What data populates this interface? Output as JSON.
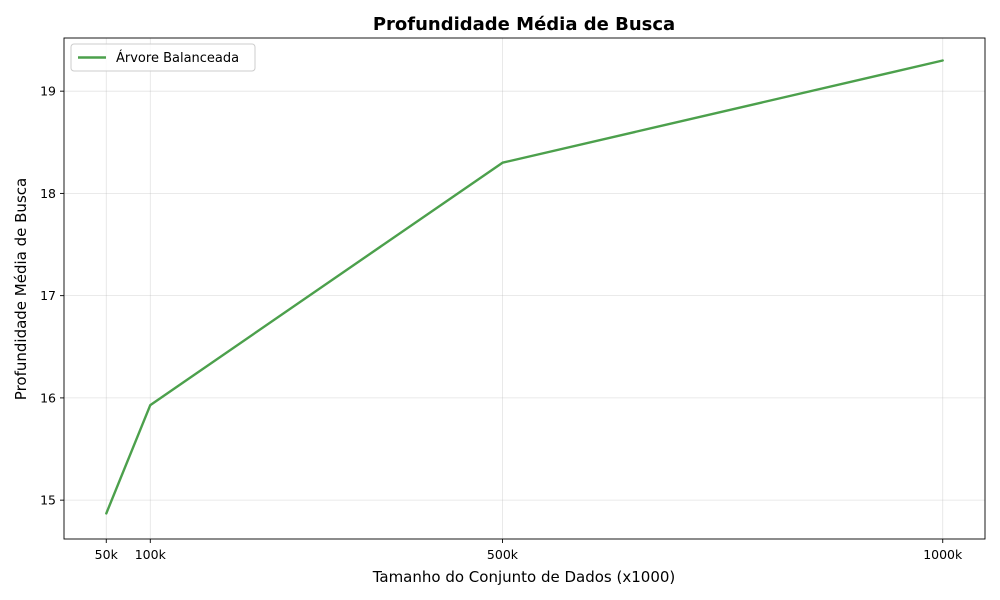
{
  "chart_data": {
    "type": "line",
    "title": "Profundidade Média de Busca",
    "xlabel": "Tamanho do Conjunto de Dados (x1000)",
    "ylabel": "Profundidade Média de Busca",
    "x": [
      50,
      100,
      500,
      1000
    ],
    "x_tick_labels": [
      "50k",
      "100k",
      "500k",
      "1000k"
    ],
    "y_ticks": [
      15,
      16,
      17,
      18,
      19
    ],
    "xlim": [
      2,
      1048
    ],
    "ylim": [
      14.62,
      19.52
    ],
    "grid": true,
    "legend_position": "top-left",
    "series": [
      {
        "name": "Árvore Balanceada",
        "color": "#4ca04c",
        "values": [
          14.87,
          15.93,
          18.3,
          19.3
        ]
      }
    ]
  }
}
